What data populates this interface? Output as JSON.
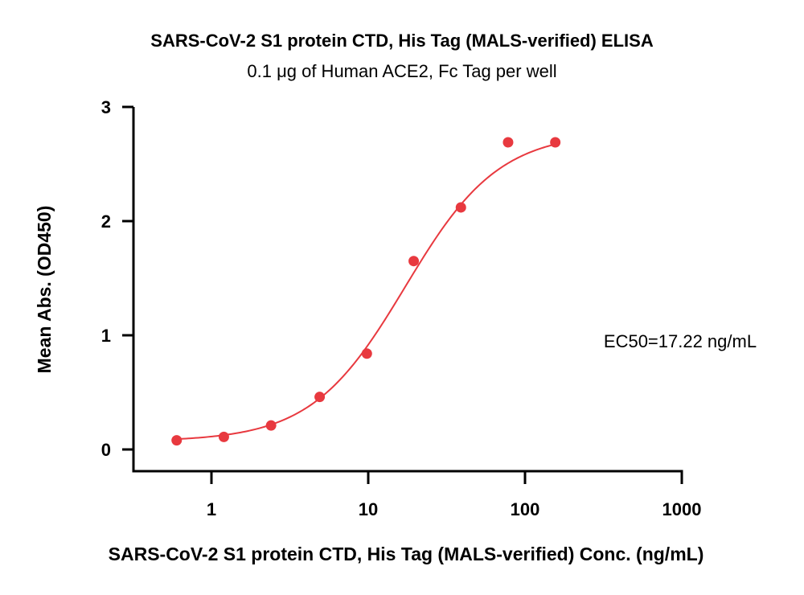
{
  "chart_data": {
    "type": "scatter",
    "title": "SARS-CoV-2 S1 protein CTD, His Tag (MALS-verified) ELISA",
    "subtitle": "0.1 μg of Human ACE2, Fc Tag per well",
    "xlabel": "SARS-CoV-2 S1 protein CTD, His Tag (MALS-verified) Conc. (ng/mL)",
    "ylabel": "Mean Abs. (OD450)",
    "x_scale": "log",
    "xlim": [
      0.35,
      1000
    ],
    "ylim": [
      -0.2,
      3
    ],
    "x_ticks": [
      1,
      10,
      100,
      1000
    ],
    "x_tick_labels": [
      "1",
      "10",
      "100",
      "1000"
    ],
    "y_ticks": [
      0,
      1,
      2,
      3
    ],
    "y_tick_labels": [
      "0",
      "1",
      "2",
      "3"
    ],
    "annotation": "EC50=17.22 ng/mL",
    "ec50": 17.22,
    "color": "#e8393f",
    "series": [
      {
        "x": [
          0.6,
          1.2,
          2.4,
          4.9,
          9.8,
          19.5,
          39,
          78,
          156
        ],
        "y": [
          0.08,
          0.11,
          0.21,
          0.46,
          0.84,
          1.65,
          2.12,
          2.69,
          2.69
        ]
      }
    ],
    "fit": {
      "bottom": 0.07,
      "top": 2.78,
      "ec50": 17.22,
      "hill": 1.45
    }
  }
}
